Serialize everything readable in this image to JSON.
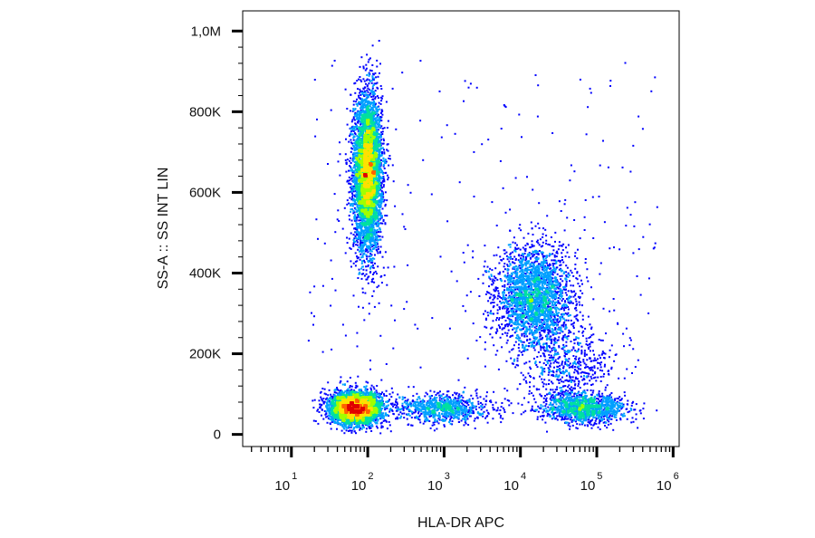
{
  "chart_data": {
    "type": "scatter",
    "subtype": "flow-cytometry density dot plot",
    "title": "",
    "xlabel": "HLA-DR APC",
    "ylabel": "SS-A :: SS INT LIN",
    "x_scale": "log",
    "x_range": [
      2.3,
      1200000
    ],
    "y_scale": "linear",
    "y_range": [
      -30000,
      1050000
    ],
    "x_ticks": [
      {
        "value": 10,
        "base": "10",
        "exp": "1"
      },
      {
        "value": 100,
        "base": "10",
        "exp": "2"
      },
      {
        "value": 1000,
        "base": "10",
        "exp": "3"
      },
      {
        "value": 10000,
        "base": "10",
        "exp": "4"
      },
      {
        "value": 100000,
        "base": "10",
        "exp": "5"
      },
      {
        "value": 1000000,
        "base": "10",
        "exp": "6"
      }
    ],
    "y_ticks": [
      {
        "value": 0,
        "label": "0"
      },
      {
        "value": 200000,
        "label": "200K"
      },
      {
        "value": 400000,
        "label": "400K"
      },
      {
        "value": 600000,
        "label": "600K"
      },
      {
        "value": 800000,
        "label": "800K"
      },
      {
        "value": 1000000,
        "label": "1,0M"
      }
    ],
    "color_scale": [
      "#0000ff",
      "#00a0ff",
      "#00e0a0",
      "#a0ff00",
      "#ffe000",
      "#ff6000",
      "#e00000"
    ],
    "populations": [
      {
        "x_center": 100,
        "x_sd_decades": 0.09,
        "y_center": 650000,
        "y_sd": 95000,
        "count": 5500
      },
      {
        "x_center": 70,
        "x_sd_decades": 0.17,
        "y_center": 65000,
        "y_sd": 20000,
        "count": 3800
      },
      {
        "x_center": 1000,
        "x_sd_decades": 0.3,
        "y_center": 65000,
        "y_sd": 18000,
        "count": 900
      },
      {
        "x_center": 15000,
        "x_sd_decades": 0.25,
        "y_center": 340000,
        "y_sd": 62000,
        "count": 2600
      },
      {
        "x_center": 70000,
        "x_sd_decades": 0.28,
        "y_center": 65000,
        "y_sd": 18000,
        "count": 1300
      },
      {
        "x_center": 40000,
        "x_sd_decades": 0.3,
        "y_center": 170000,
        "y_sd": 55000,
        "count": 600
      }
    ]
  }
}
